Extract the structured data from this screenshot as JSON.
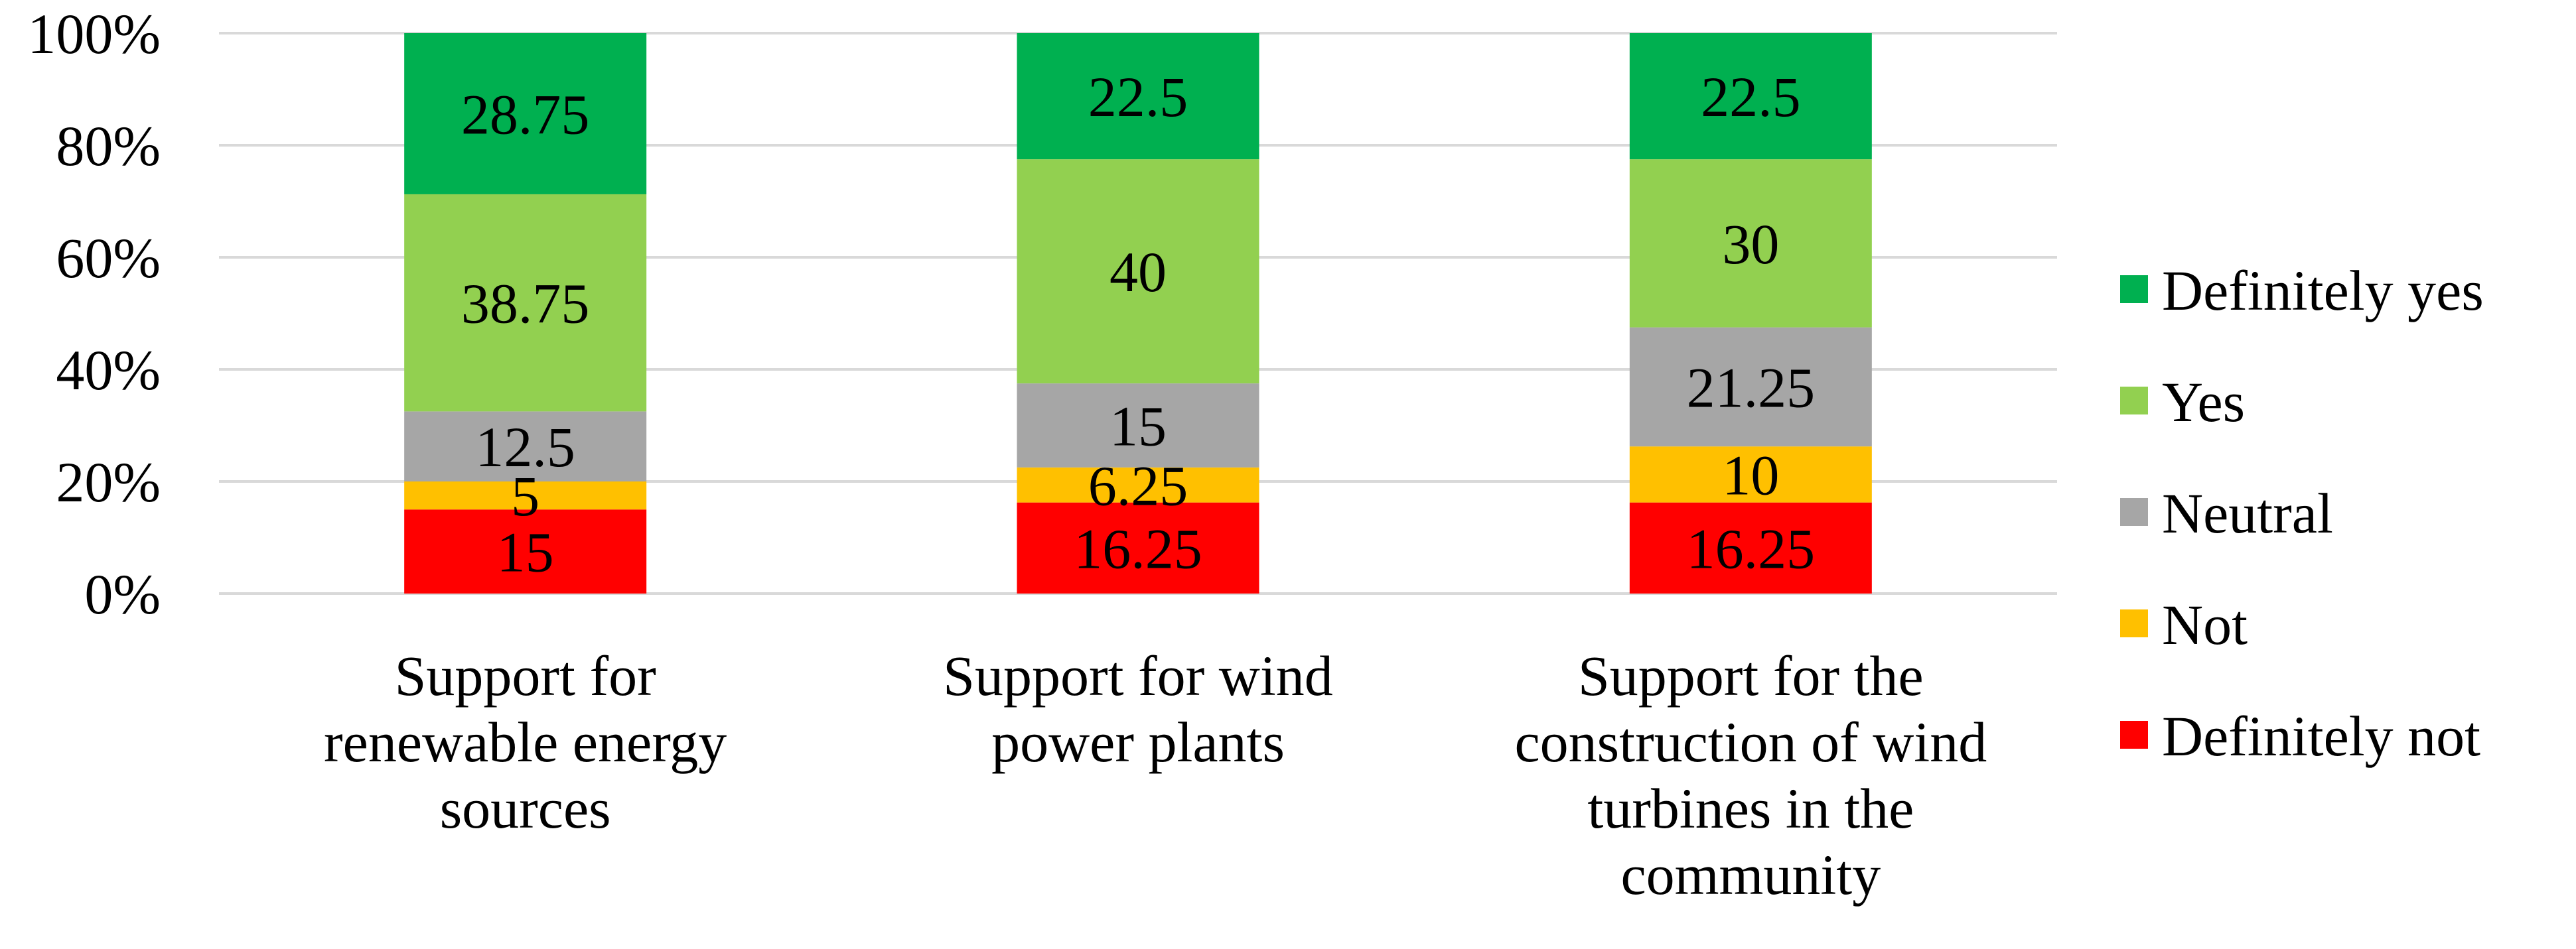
{
  "chart_data": {
    "type": "bar",
    "stacked": true,
    "percent_stacked": true,
    "title": "",
    "xlabel": "",
    "ylabel": "",
    "ylim": [
      0,
      100
    ],
    "y_ticks": [
      "0%",
      "20%",
      "40%",
      "60%",
      "80%",
      "100%"
    ],
    "grid": true,
    "legend_position": "right",
    "categories": [
      [
        "Support for",
        "renewable energy",
        "sources"
      ],
      [
        "Support for wind",
        "power plants"
      ],
      [
        "Support for the",
        "construction of wind",
        "turbines in the",
        "community"
      ]
    ],
    "series": [
      {
        "name": "Definitely not",
        "color": "#ff0000",
        "values": [
          15,
          16.25,
          16.25
        ],
        "labels": [
          "15",
          "16.25",
          "16.25"
        ]
      },
      {
        "name": "Not",
        "color": "#ffc000",
        "values": [
          5,
          6.25,
          10
        ],
        "labels": [
          "5",
          "6.25",
          "10"
        ]
      },
      {
        "name": "Neutral",
        "color": "#a6a6a6",
        "values": [
          12.5,
          15,
          21.25
        ],
        "labels": [
          "12.5",
          "15",
          "21.25"
        ]
      },
      {
        "name": "Yes",
        "color": "#92d050",
        "values": [
          38.75,
          40,
          30
        ],
        "labels": [
          "38.75",
          "40",
          "30"
        ]
      },
      {
        "name": "Definitely yes",
        "color": "#00b050",
        "values": [
          28.75,
          22.5,
          22.5
        ],
        "labels": [
          "28.75",
          "22.5",
          "22.5"
        ]
      }
    ],
    "legend_order": [
      "Definitely yes",
      "Yes",
      "Neutral",
      "Not",
      "Definitely not"
    ]
  }
}
